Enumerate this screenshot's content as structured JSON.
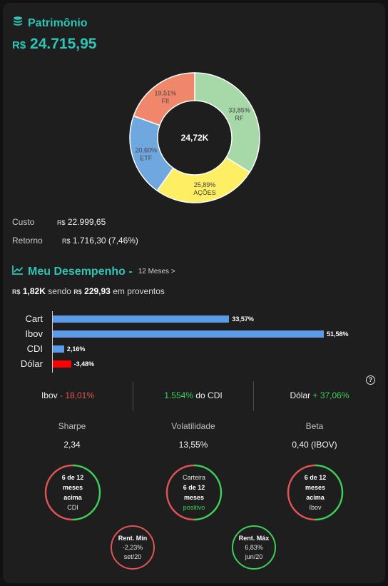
{
  "header": {
    "title": "Patrimônio",
    "currency": "R$",
    "total": "24.715,95",
    "icon": "coins-stack-icon"
  },
  "allocation": {
    "center_label": "24,72K",
    "chart_data": {
      "type": "pie",
      "title": "",
      "slices": [
        {
          "label": "RF",
          "value": 33.85,
          "text": "33,85%",
          "color": "#a6d8a8"
        },
        {
          "label": "AÇÕES",
          "value": 25.89,
          "text": "25,89%",
          "color": "#fdee64"
        },
        {
          "label": "ETF",
          "value": 20.6,
          "text": "20,60%",
          "color": "#6fa7df"
        },
        {
          "label": "FII",
          "value": 19.51,
          "text": "19,51%",
          "color": "#f0876a"
        }
      ]
    }
  },
  "summary": {
    "cost_label": "Custo",
    "cost_currency": "R$",
    "cost_value": "22.999,65",
    "return_label": "Retorno",
    "return_currency": "R$",
    "return_value": "1.716,30 (7,46%)"
  },
  "performance": {
    "title": "Meu Desempenho -",
    "period": "12 Meses >",
    "icon": "trend-chart-icon",
    "sub_currency": "R$",
    "sub_amount": "1,82K",
    "sub_mid": "sendo",
    "sub_currency2": "R$",
    "sub_proventos": "229,93",
    "sub_tail": "em proventos",
    "chart_data": {
      "type": "bar",
      "orientation": "horizontal",
      "title": "",
      "categories": [
        "Cart",
        "Ibov",
        "CDI",
        "Dólar"
      ],
      "values": [
        33.57,
        51.58,
        2.16,
        -3.48
      ],
      "labels": [
        "33,57%",
        "51,58%",
        "2,16%",
        "-3,48%"
      ],
      "colors": [
        "#5b9be8",
        "#5b9be8",
        "#5b9be8",
        "#ff0000"
      ]
    }
  },
  "compare": {
    "ibov_label": "Ibov",
    "ibov_value": "- 18,01%",
    "cdi_value": "1.554%",
    "cdi_label": "do CDI",
    "dolar_label": "Dólar",
    "dolar_value": "+ 37,06%",
    "help_icon": "help-circle-icon",
    "help_text": "?"
  },
  "metrics": {
    "sharpe_label": "Sharpe",
    "sharpe_value": "2,34",
    "vol_label": "Volatilidade",
    "vol_value": "13,55%",
    "beta_label": "Beta",
    "beta_value": "0,40 (IBOV)"
  },
  "rings": {
    "cdi": {
      "line1": "6 de 12",
      "line2": "meses",
      "line3": "acima",
      "line4": "CDI",
      "positive_fraction": 0.5
    },
    "carteira": {
      "line1": "Carteira",
      "line2": "6 de 12",
      "line3": "meses",
      "line4": "positivo",
      "positive_fraction": 0.5
    },
    "ibov": {
      "line1": "6 de 12",
      "line2": "meses",
      "line3": "acima",
      "line4": "Ibov",
      "positive_fraction": 0.5
    },
    "min": {
      "line1": "Rent. Mín",
      "line2": "-2,23%",
      "line3": "set/20"
    },
    "max": {
      "line1": "Rent. Máx",
      "line2": "6,83%",
      "line3": "jun/20"
    }
  },
  "colors": {
    "accent": "#2ec4b6",
    "positive": "#3ecf5a",
    "negative": "#e05454"
  }
}
